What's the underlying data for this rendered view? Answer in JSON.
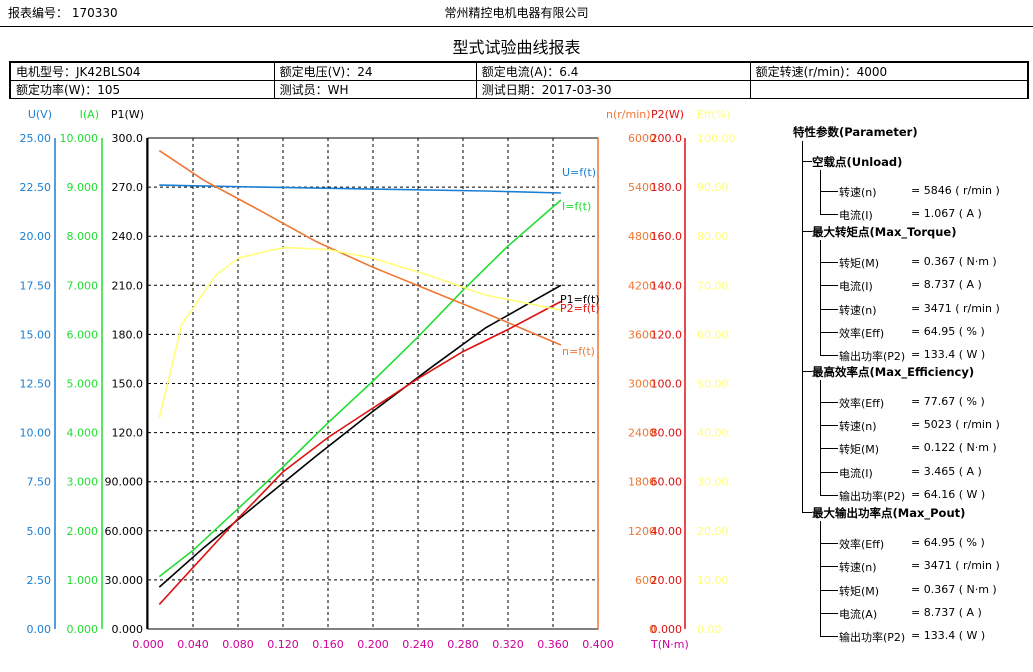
{
  "header": {
    "report_no": "报表编号：  170330",
    "company": "常州精控电机电器有限公司",
    "title": "型式试验曲线报表"
  },
  "info": {
    "row1": [
      "电机型号：JK42BLS04",
      "额定电压(V)：24",
      "额定电流(A)：6.4",
      "额定转速(r/min)：4000"
    ],
    "row2": [
      "额定功率(W)：105",
      "测试员：WH",
      "测试日期：2017-03-30",
      ""
    ]
  },
  "colors": {
    "U": "#1a7fd4",
    "I": "#22dd33",
    "P1": "#000000",
    "n": "#ee7733",
    "P2": "#dd1111",
    "Eff": "#ffff77",
    "x": "#cc0099"
  },
  "chart_data": {
    "type": "line",
    "xlabel": "T(N·m)",
    "x_ticks": [
      "0.000",
      "0.040",
      "0.080",
      "0.120",
      "0.160",
      "0.200",
      "0.240",
      "0.280",
      "0.320",
      "0.360",
      "0.400"
    ],
    "xlim": [
      0,
      0.4
    ],
    "grid": true,
    "left_axes": [
      {
        "key": "U",
        "label": "U(V)",
        "ticks": [
          "0.00",
          "2.50",
          "5.00",
          "7.50",
          "10.00",
          "12.50",
          "15.00",
          "17.50",
          "20.00",
          "22.50",
          "25.00"
        ],
        "ylim": [
          0,
          25
        ]
      },
      {
        "key": "I",
        "label": "I(A)",
        "ticks": [
          "0.000",
          "1.000",
          "2.000",
          "3.000",
          "4.000",
          "5.000",
          "6.000",
          "7.000",
          "8.000",
          "9.000",
          "10.000"
        ],
        "ylim": [
          0,
          10
        ]
      },
      {
        "key": "P1",
        "label": "P1(W)",
        "ticks": [
          "0.000",
          "30.000",
          "60.000",
          "90.000",
          "120.0",
          "150.0",
          "180.0",
          "210.0",
          "240.0",
          "270.0",
          "300.0"
        ],
        "ylim": [
          0,
          300
        ]
      }
    ],
    "right_axes": [
      {
        "key": "n",
        "label": "n(r/min)",
        "ticks": [
          "0",
          "600",
          "1200",
          "1800",
          "2400",
          "3000",
          "3600",
          "4200",
          "4800",
          "5400",
          "6000"
        ],
        "ylim": [
          0,
          6000
        ]
      },
      {
        "key": "P2",
        "label": "P2(W)",
        "ticks": [
          "0.000",
          "20.00",
          "40.00",
          "60.00",
          "80.00",
          "100.0",
          "120.0",
          "140.0",
          "160.0",
          "180.0",
          "200.0"
        ],
        "ylim": [
          0,
          200
        ]
      },
      {
        "key": "Eff",
        "label": "Eff(%)",
        "ticks": [
          "0.00",
          "10.00",
          "20.00",
          "30.00",
          "40.00",
          "50.00",
          "60.00",
          "70.00",
          "80.00",
          "90.00",
          "100.00"
        ],
        "ylim": [
          0,
          100
        ]
      }
    ],
    "series": [
      {
        "key": "U",
        "name": "U=f(t)",
        "axis": "U",
        "x": [
          0.01,
          0.1,
          0.2,
          0.3,
          0.367
        ],
        "y": [
          22.6,
          22.5,
          22.4,
          22.3,
          22.2
        ]
      },
      {
        "key": "I",
        "name": "I=f(t)",
        "axis": "I",
        "x": [
          0.01,
          0.04,
          0.08,
          0.12,
          0.16,
          0.2,
          0.24,
          0.28,
          0.32,
          0.367
        ],
        "y": [
          1.067,
          1.6,
          2.45,
          3.3,
          4.2,
          5.05,
          5.95,
          6.9,
          7.8,
          8.737
        ]
      },
      {
        "key": "P1",
        "name": "P1=f(t)",
        "axis": "P1",
        "x": [
          0.01,
          0.05,
          0.1,
          0.15,
          0.2,
          0.25,
          0.3,
          0.367
        ],
        "y": [
          25.6,
          50,
          78,
          106,
          133,
          159,
          184,
          210
        ]
      },
      {
        "key": "n",
        "name": "n=f(t)",
        "axis": "n",
        "x": [
          0.01,
          0.05,
          0.1,
          0.15,
          0.2,
          0.25,
          0.3,
          0.367
        ],
        "y": [
          5846,
          5480,
          5110,
          4730,
          4420,
          4140,
          3860,
          3471
        ]
      },
      {
        "key": "P2",
        "name": "P2=f(t)",
        "axis": "P2",
        "x": [
          0.01,
          0.04,
          0.08,
          0.12,
          0.16,
          0.2,
          0.24,
          0.28,
          0.32,
          0.367
        ],
        "y": [
          10,
          25,
          45,
          64,
          78,
          90,
          102,
          113,
          122,
          133.4
        ]
      },
      {
        "key": "Eff",
        "name": "",
        "axis": "Eff",
        "x": [
          0.01,
          0.03,
          0.06,
          0.08,
          0.11,
          0.122,
          0.16,
          0.2,
          0.25,
          0.3,
          0.367
        ],
        "y": [
          43,
          62,
          72,
          75.5,
          77.2,
          77.67,
          77.3,
          75.5,
          72,
          68,
          64.95
        ]
      }
    ]
  },
  "params": {
    "title": "特性参数(Parameter)",
    "sections": [
      {
        "name": "空载点(Unload)",
        "rows": [
          {
            "label": "转速(n)",
            "value": "=  5846  ( r/min )"
          },
          {
            "label": "电流(I)",
            "value": "=  1.067  ( A )"
          }
        ]
      },
      {
        "name": "最大转矩点(Max_Torque)",
        "rows": [
          {
            "label": "转矩(M)",
            "value": "=  0.367  ( N·m )"
          },
          {
            "label": "电流(I)",
            "value": "=  8.737  ( A )"
          },
          {
            "label": "转速(n)",
            "value": "=  3471  ( r/min )"
          },
          {
            "label": "效率(Eff)",
            "value": "=  64.95  ( % )"
          },
          {
            "label": "输出功率(P2)",
            "value": "=  133.4  ( W )"
          }
        ]
      },
      {
        "name": "最高效率点(Max_Efficiency)",
        "rows": [
          {
            "label": "效率(Eff)",
            "value": "=  77.67  ( % )"
          },
          {
            "label": "转速(n)",
            "value": "=  5023  ( r/min )"
          },
          {
            "label": "转矩(M)",
            "value": "=  0.122  ( N·m )"
          },
          {
            "label": "电流(I)",
            "value": "=  3.465  ( A )"
          },
          {
            "label": "输出功率(P2)",
            "value": "=  64.16  ( W )"
          }
        ]
      },
      {
        "name": "最大输出功率点(Max_Pout)",
        "rows": [
          {
            "label": "效率(Eff)",
            "value": "=  64.95  ( % )"
          },
          {
            "label": "转速(n)",
            "value": "=  3471  ( r/min )"
          },
          {
            "label": "转矩(M)",
            "value": "=  0.367  ( N·m )"
          },
          {
            "label": "电流(A)",
            "value": "=  8.737  ( A )"
          },
          {
            "label": "输出功率(P2)",
            "value": "=  133.4  ( W )"
          }
        ]
      }
    ]
  }
}
